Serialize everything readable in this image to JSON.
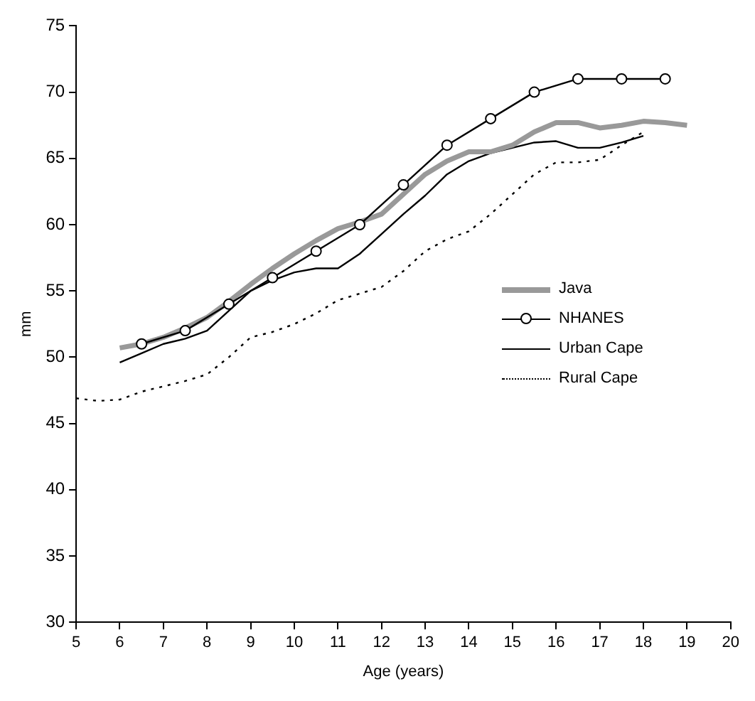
{
  "chart_data": {
    "type": "line",
    "xlabel": "Age (years)",
    "ylabel": "mm",
    "xlim": [
      5,
      20
    ],
    "xticks": [
      5,
      6,
      7,
      8,
      9,
      10,
      11,
      12,
      13,
      14,
      15,
      16,
      17,
      18,
      19,
      20
    ],
    "ylim": [
      30,
      75
    ],
    "yticks": [
      30,
      35,
      40,
      45,
      50,
      55,
      60,
      65,
      70,
      75
    ],
    "grid": false,
    "legend": "right",
    "series": [
      {
        "name": "Java",
        "color": "#999999",
        "marker": "none",
        "line_style": "solid",
        "x": [
          6,
          6.5,
          7,
          7.5,
          8,
          8.5,
          9,
          9.5,
          10,
          10.5,
          11,
          11.5,
          12,
          12.5,
          13,
          13.5,
          14,
          14.5,
          15,
          15.5,
          16,
          16.5,
          17,
          17.5,
          18,
          18.5,
          19
        ],
        "values": [
          50.7,
          51,
          51.5,
          52.2,
          53,
          54.2,
          55.5,
          56.7,
          57.8,
          58.8,
          59.7,
          60.2,
          60.8,
          62.3,
          63.8,
          64.8,
          65.5,
          65.5,
          66,
          67,
          67.7,
          67.7,
          67.3,
          67.5,
          67.8,
          67.7,
          67.5
        ]
      },
      {
        "name": "NHANES",
        "color": "#000000",
        "marker": "circle",
        "line_style": "solid",
        "x": [
          6.5,
          7.5,
          8.5,
          9.5,
          10.5,
          11.5,
          12.5,
          13.5,
          14.5,
          15.5,
          16.5,
          17.5,
          18.5
        ],
        "values": [
          51,
          52,
          54,
          56,
          58,
          60,
          63,
          66,
          68,
          70,
          71,
          71,
          71
        ]
      },
      {
        "name": "Urban Cape",
        "color": "#000000",
        "marker": "none",
        "line_style": "solid",
        "x": [
          6,
          6.5,
          7,
          7.5,
          8,
          8.5,
          9,
          9.5,
          10,
          10.5,
          11,
          11.5,
          12,
          12.5,
          13,
          13.5,
          14,
          14.5,
          15,
          15.5,
          16,
          16.5,
          17,
          17.5,
          18
        ],
        "values": [
          49.6,
          50.3,
          51,
          51.4,
          52,
          53.5,
          55,
          55.8,
          56.4,
          56.7,
          56.7,
          57.8,
          59.3,
          60.8,
          62.2,
          63.8,
          64.8,
          65.4,
          65.8,
          66.2,
          66.3,
          65.8,
          65.8,
          66.2,
          66.7
        ]
      },
      {
        "name": "Rural Cape",
        "color": "#000000",
        "marker": "none",
        "line_style": "dotted",
        "x": [
          5,
          5.5,
          6,
          6.5,
          7,
          7.5,
          8,
          8.5,
          9,
          9.5,
          10,
          10.5,
          11,
          11.5,
          12,
          12.5,
          13,
          13.5,
          14,
          14.5,
          15,
          15.5,
          16,
          16.5,
          17,
          17.5,
          18
        ],
        "values": [
          46.9,
          46.7,
          46.8,
          47.4,
          47.8,
          48.2,
          48.7,
          50,
          51.5,
          51.9,
          52.5,
          53.3,
          54.3,
          54.8,
          55.3,
          56.5,
          58,
          58.9,
          59.5,
          60.8,
          62.3,
          63.8,
          64.7,
          64.7,
          64.9,
          66,
          67
        ]
      }
    ]
  }
}
